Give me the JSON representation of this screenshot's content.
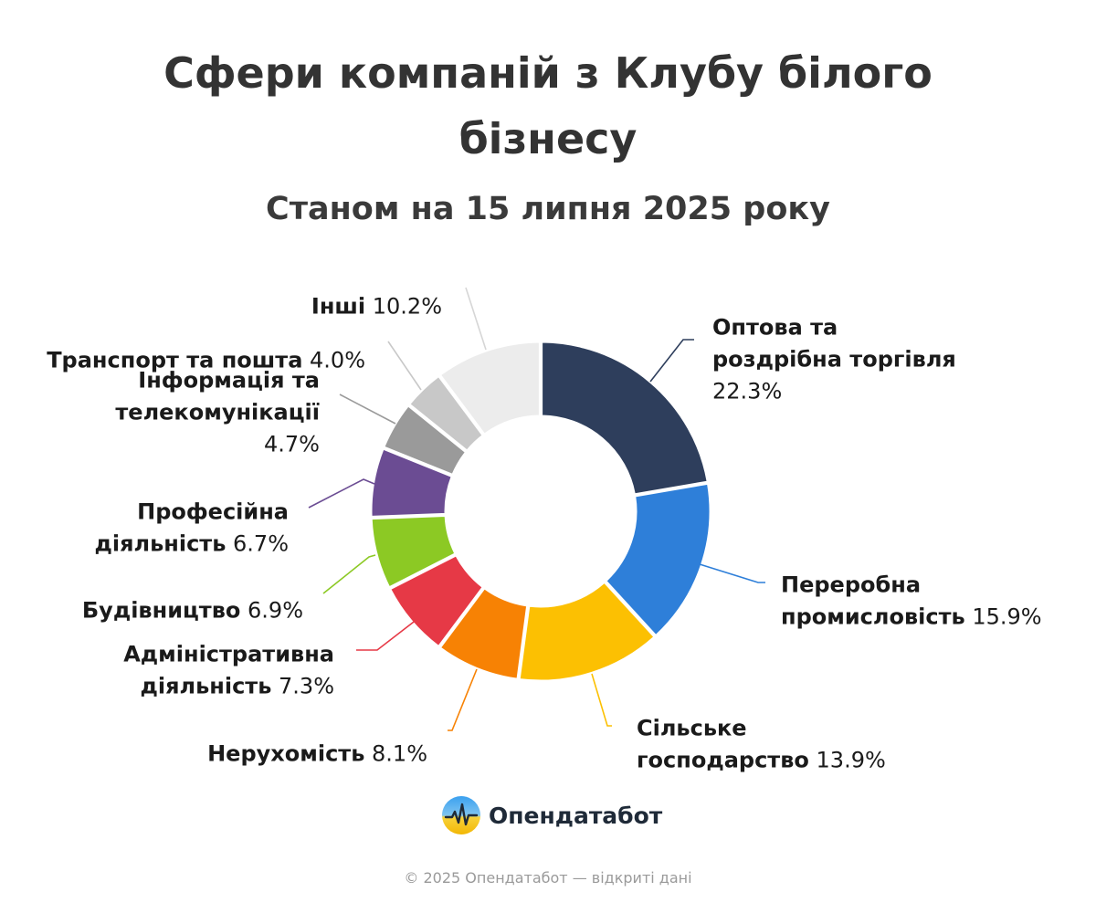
{
  "chart_data": {
    "type": "pie",
    "title": "Сфери компаній з Клубу білого бізнесу",
    "subtitle": "Станом на 15 липня 2025 року",
    "value_suffix": "%",
    "slices": [
      {
        "name": "Оптова та роздрібна торгівля",
        "label_lines": [
          "Оптова та",
          "роздрібна торгівля"
        ],
        "value": 22.3,
        "value_text": "22.3%",
        "color": "#2e3e5c"
      },
      {
        "name": "Переробна промисловість",
        "label_lines": [
          "Переробна",
          "промисловість"
        ],
        "value": 15.9,
        "value_text": "15.9%",
        "color": "#2e7fd9"
      },
      {
        "name": "Сільське господарство",
        "label_lines": [
          "Сільське",
          "господарство"
        ],
        "value": 13.9,
        "value_text": "13.9%",
        "color": "#fcc002"
      },
      {
        "name": "Нерухомість",
        "label_lines": [
          "Нерухомість"
        ],
        "value": 8.1,
        "value_text": "8.1%",
        "color": "#f78204"
      },
      {
        "name": "Адміністративна діяльність",
        "label_lines": [
          "Адміністративна",
          "діяльність"
        ],
        "value": 7.3,
        "value_text": "7.3%",
        "color": "#e63946"
      },
      {
        "name": "Будівництво",
        "label_lines": [
          "Будівництво"
        ],
        "value": 6.9,
        "value_text": "6.9%",
        "color": "#8cc924"
      },
      {
        "name": "Професійна діяльність",
        "label_lines": [
          "Професійна",
          "діяльність"
        ],
        "value": 6.7,
        "value_text": "6.7%",
        "color": "#6b4c93"
      },
      {
        "name": "Інформація та телекомунікації",
        "label_lines": [
          "Інформація та",
          "телекомунікації"
        ],
        "value": 4.7,
        "value_text": "4.7%",
        "color": "#9a9a9a"
      },
      {
        "name": "Транспорт та пошта",
        "label_lines": [
          "Транспорт та пошта"
        ],
        "value": 4.0,
        "value_text": "4.0%",
        "color": "#c8c8c8"
      },
      {
        "name": "Інші",
        "label_lines": [
          "Інші"
        ],
        "value": 10.2,
        "value_text": "10.2%",
        "color": "#ececec"
      }
    ]
  },
  "brand": {
    "name": "Опендатабот",
    "logo_icon": "opendatabot-logo-icon"
  },
  "footer": {
    "text": "© 2025 Опендатабот — відкриті дані"
  }
}
